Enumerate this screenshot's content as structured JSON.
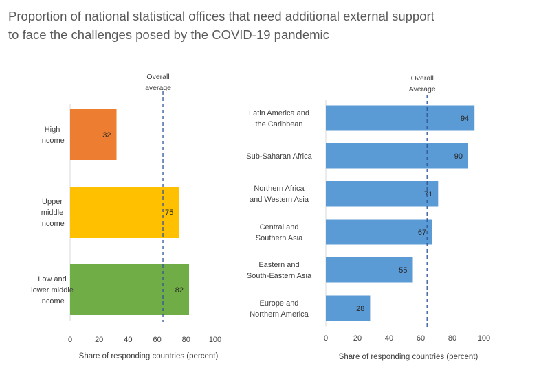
{
  "title_lines": [
    "Proportion of national statistical offices that need additional external support",
    "to face the challenges posed by the COVID-19 pandemic"
  ],
  "chart_data": [
    {
      "type": "bar",
      "orientation": "horizontal",
      "categories": [
        [
          "High",
          "income"
        ],
        [
          "Upper",
          "middle",
          "income"
        ],
        [
          "Low and",
          "lower middle",
          "income"
        ]
      ],
      "values": [
        32,
        75,
        82
      ],
      "colors": [
        "#ED7D31",
        "#FFC000",
        "#70AD47"
      ],
      "xlabel": "Share of responding countries (percent)",
      "xlim": [
        0,
        100
      ],
      "xticks": [
        0,
        20,
        40,
        60,
        80,
        100
      ],
      "reference_line": {
        "value": 64,
        "label": [
          "Overall",
          "average"
        ]
      },
      "grid": false
    },
    {
      "type": "bar",
      "orientation": "horizontal",
      "categories": [
        [
          "Latin America and",
          "the Caribbean"
        ],
        [
          "Sub-Saharan Africa"
        ],
        [
          "Northern Africa",
          "and  Western Asia"
        ],
        [
          "Central and",
          "Southern Asia"
        ],
        [
          "Eastern and",
          "South-Eastern Asia"
        ],
        [
          "Europe and",
          "Northern America"
        ]
      ],
      "values": [
        94,
        90,
        71,
        67,
        55,
        28
      ],
      "colors": [
        "#5B9BD5",
        "#5B9BD5",
        "#5B9BD5",
        "#5B9BD5",
        "#5B9BD5",
        "#5B9BD5"
      ],
      "xlabel": "Share of responding countries (percent)",
      "xlim": [
        0,
        100
      ],
      "xticks": [
        0,
        20,
        40,
        60,
        80,
        100
      ],
      "reference_line": {
        "value": 64,
        "label": [
          "Overall",
          "Average"
        ]
      },
      "grid": false
    }
  ]
}
